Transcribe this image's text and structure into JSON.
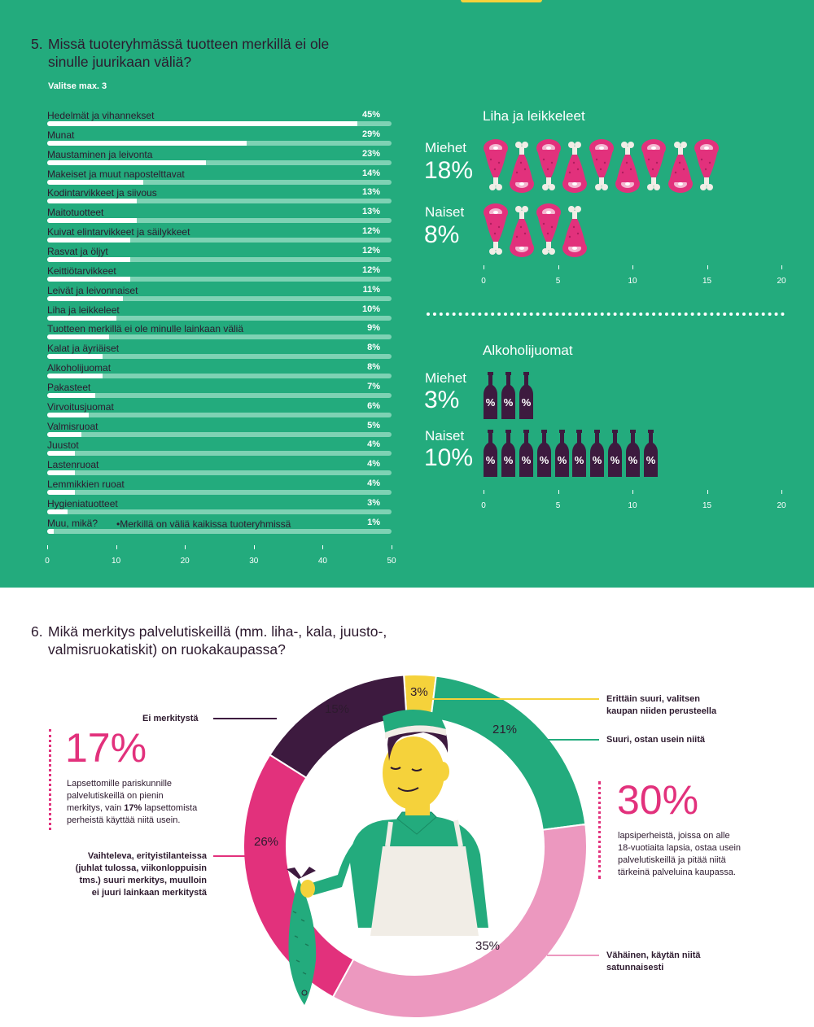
{
  "q5": {
    "number": "5.",
    "title_line1": "Missä tuoteryhmässä tuotteen merkillä ei ole",
    "title_line2": "sinulle juurikaan väliä?",
    "subtitle": "Valitse max. 3"
  },
  "q5_extra_label": "•Merkillä on väliä kaikissa tuoteryhmissä",
  "meat_panel": {
    "title": "Liha ja leikkeleet",
    "men_label": "Miehet",
    "men_value": "18%",
    "women_label": "Naiset",
    "women_value": "8%"
  },
  "alcohol_panel": {
    "title": "Alkoholijuomat",
    "men_label": "Miehet",
    "men_value": "3%",
    "women_label": "Naiset",
    "women_value": "10%",
    "bottle_mark": "%"
  },
  "q6": {
    "number": "6.",
    "title_line1": "Mikä merkitys palvelutiskeillä (mm. liha-, kala, juusto-,",
    "title_line2": "valmisruokatiskit) on ruokakaupassa?"
  },
  "left_stat": {
    "value": "17%",
    "text_line1": "Lapsettomille pariskunnille",
    "text_line2": "palvelutiskeillä on pienin",
    "text_line3a": "merkitys, vain ",
    "text_line3b": "17%",
    "text_line3c": " lapsettomista",
    "text_line4": "perheistä käyttää niitä usein."
  },
  "right_stat": {
    "value": "30%",
    "text_line1": "lapsiperheistä, joissa on alle",
    "text_line2": "18-vuotiaita lapsia, ostaa usein",
    "text_line3": "palvelutiskeillä ja pitää niitä",
    "text_line4": "tärkeinä palveluina kaupassa."
  },
  "callouts": {
    "none_label": "Ei merkitystä",
    "varying_line1": "Vaihteleva, erityistilanteissa",
    "varying_line2": "(juhlat tulossa, viikonloppuisin",
    "varying_line3": "tms.) suuri merkitys, muulloin",
    "varying_line4": "ei juuri lainkaan merkitystä",
    "very_big_line1": "Erittäin suuri, valitsen",
    "very_big_line2": "kaupan niiden perusteella",
    "big_line1": "Suuri, ostan usein niitä",
    "small_line1": "Vähäinen, käytän niitä",
    "small_line2": "satunnaisesti"
  },
  "colors": {
    "green": "#23ab7d",
    "light_green": "#7ed2b4",
    "pink": "#e2317c",
    "light_pink": "#ec98bf",
    "purple": "#3d1a3f",
    "yellow": "#f5d23b",
    "dark_text": "#2d1a2e"
  },
  "chart_data": [
    {
      "type": "bar",
      "orientation": "horizontal",
      "categories": [
        "Hedelmät ja vihannekset",
        "Munat",
        "Maustaminen ja leivonta",
        "Makeiset ja muut napostelttavat",
        "Kodintarvikkeet ja siivous",
        "Maitotuotteet",
        "Kuivat elintarvikkeet ja säilykkeet",
        "Rasvat ja öljyt",
        "Keittiötarvikkeet",
        "Leivät ja leivonnaiset",
        "Liha ja leikkeleet",
        "Tuotteen merkillä ei ole minulle lainkaan väliä",
        "Kalat ja äyriäiset",
        "Alkoholijuomat",
        "Pakasteet",
        "Virvoitusjuomat",
        "Valmisruoat",
        "Juustot",
        "Lastenruoat",
        "Lemmikkien ruoat",
        "Hygieniatuotteet",
        "Muu, mikä?"
      ],
      "values": [
        45,
        29,
        23,
        14,
        13,
        13,
        12,
        12,
        12,
        11,
        10,
        9,
        8,
        8,
        7,
        6,
        5,
        4,
        4,
        4,
        3,
        1
      ],
      "value_labels": [
        "45%",
        "29%",
        "23%",
        "14%",
        "13%",
        "13%",
        "12%",
        "12%",
        "12%",
        "11%",
        "10%",
        "9%",
        "8%",
        "8%",
        "7%",
        "6%",
        "5%",
        "4%",
        "4%",
        "4%",
        "3%",
        "1%"
      ],
      "xlim": [
        0,
        50
      ],
      "xticks": [
        "0",
        "10",
        "20",
        "30",
        "40",
        "50"
      ]
    },
    {
      "type": "bar",
      "orientation": "horizontal",
      "title": "Liha ja leikkeleet",
      "categories": [
        "Miehet",
        "Naiset"
      ],
      "values": [
        18,
        8
      ],
      "xlim": [
        0,
        20
      ],
      "xticks": [
        "0",
        "5",
        "10",
        "15",
        "20"
      ]
    },
    {
      "type": "bar",
      "orientation": "horizontal",
      "title": "Alkoholijuomat",
      "categories": [
        "Miehet",
        "Naiset"
      ],
      "values": [
        3,
        10
      ],
      "xlim": [
        0,
        20
      ],
      "xticks": [
        "0",
        "5",
        "10",
        "15",
        "20"
      ]
    },
    {
      "type": "pie",
      "donut": true,
      "categories": [
        "Erittäin suuri, valitsen kaupan niiden perusteella",
        "Suuri, ostan usein niitä",
        "Vähäinen, käytän niitä satunnaisesti",
        "Vaihteleva, erityistilanteissa (juhlat tulossa, viikonloppuisin tms.) suuri merkitys, muulloin ei juuri lainkaan merkitystä",
        "Ei merkitystä"
      ],
      "values": [
        3,
        21,
        35,
        26,
        15
      ],
      "value_labels": [
        "3%",
        "21%",
        "35%",
        "26%",
        "15%"
      ],
      "colors": [
        "#f5d23b",
        "#23ab7d",
        "#ec98bf",
        "#e2317c",
        "#3d1a3f"
      ]
    }
  ]
}
